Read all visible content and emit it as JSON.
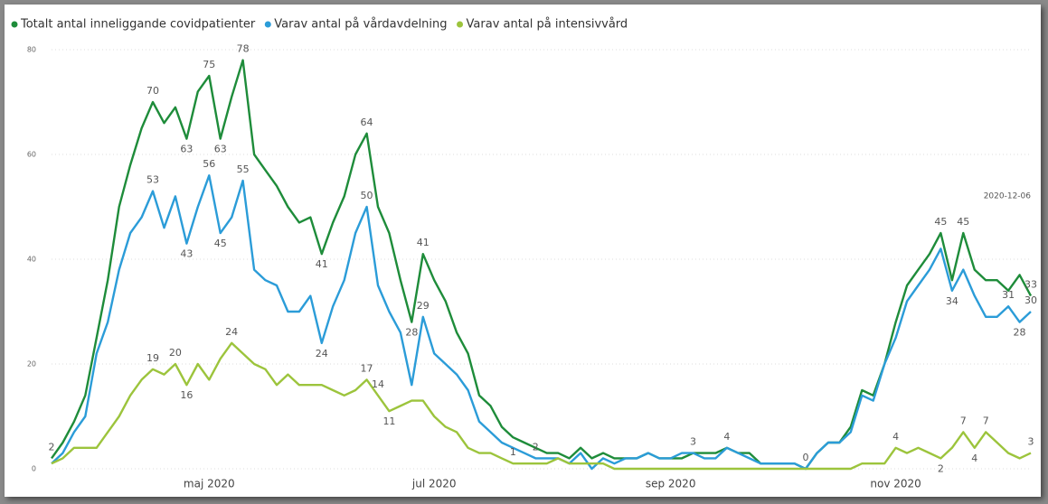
{
  "chart_data": {
    "type": "line",
    "annotation": "2020-12-06",
    "categories": [
      null,
      null,
      null,
      null,
      null,
      null,
      null,
      null,
      null,
      null,
      null,
      null,
      null,
      null,
      "maj 2020",
      null,
      null,
      null,
      null,
      null,
      null,
      null,
      null,
      null,
      null,
      null,
      null,
      null,
      null,
      null,
      null,
      null,
      null,
      null,
      "jul 2020",
      null,
      null,
      null,
      null,
      null,
      null,
      null,
      null,
      null,
      null,
      null,
      null,
      null,
      null,
      null,
      null,
      null,
      null,
      null,
      null,
      "sep 2020",
      null,
      null,
      null,
      null,
      null,
      null,
      null,
      null,
      null,
      null,
      null,
      null,
      null,
      null,
      null,
      null,
      null,
      null,
      null,
      "nov 2020",
      null,
      null,
      null,
      null,
      null,
      null,
      null,
      null,
      null,
      null,
      null,
      null
    ],
    "series": [
      {
        "name": "Totalt antal inneliggande covidpatienter",
        "color": "#1e8c3a",
        "values": [
          2,
          5,
          9,
          14,
          25,
          36,
          50,
          58,
          65,
          70,
          66,
          69,
          63,
          72,
          75,
          63,
          71,
          78,
          60,
          57,
          54,
          50,
          47,
          48,
          41,
          47,
          52,
          60,
          64,
          50,
          45,
          36,
          28,
          41,
          36,
          32,
          26,
          22,
          14,
          12,
          8,
          6,
          5,
          4,
          3,
          3,
          2,
          4,
          2,
          3,
          2,
          2,
          2,
          3,
          2,
          2,
          2,
          3,
          3,
          3,
          4,
          3,
          3,
          1,
          1,
          1,
          1,
          0,
          3,
          5,
          5,
          8,
          15,
          14,
          20,
          28,
          35,
          38,
          41,
          45,
          36,
          45,
          38,
          36,
          36,
          34,
          37,
          33
        ]
      },
      {
        "name": "Varav antal på vårdavdelning",
        "color": "#2b9cd8",
        "values": [
          1,
          3,
          7,
          10,
          22,
          28,
          38,
          45,
          48,
          53,
          46,
          52,
          43,
          50,
          56,
          45,
          48,
          55,
          38,
          36,
          35,
          30,
          30,
          33,
          24,
          31,
          36,
          45,
          50,
          35,
          30,
          26,
          16,
          29,
          22,
          20,
          18,
          15,
          9,
          7,
          5,
          4,
          3,
          2,
          2,
          2,
          1,
          3,
          0,
          2,
          1,
          2,
          2,
          3,
          2,
          2,
          3,
          3,
          2,
          2,
          4,
          3,
          2,
          1,
          1,
          1,
          1,
          0,
          3,
          5,
          5,
          7,
          14,
          13,
          20,
          25,
          32,
          35,
          38,
          42,
          34,
          38,
          33,
          29,
          29,
          31,
          28,
          30
        ]
      },
      {
        "name": "Varav antal på intensivvård",
        "color": "#9cc43c",
        "values": [
          1,
          2,
          4,
          4,
          4,
          7,
          10,
          14,
          17,
          19,
          18,
          20,
          16,
          20,
          17,
          21,
          24,
          22,
          20,
          19,
          16,
          18,
          16,
          16,
          16,
          15,
          14,
          15,
          17,
          14,
          11,
          12,
          13,
          13,
          10,
          8,
          7,
          4,
          3,
          3,
          2,
          1,
          1,
          1,
          1,
          2,
          1,
          1,
          1,
          1,
          0,
          0,
          0,
          0,
          0,
          0,
          0,
          0,
          0,
          0,
          0,
          0,
          0,
          0,
          0,
          0,
          0,
          0,
          0,
          0,
          0,
          0,
          1,
          1,
          1,
          4,
          3,
          4,
          3,
          2,
          4,
          7,
          4,
          7,
          5,
          3,
          2,
          3
        ]
      }
    ],
    "ylim": [
      0,
      80
    ],
    "yticks": [
      0,
      20,
      40,
      60,
      80
    ],
    "grid": true
  }
}
